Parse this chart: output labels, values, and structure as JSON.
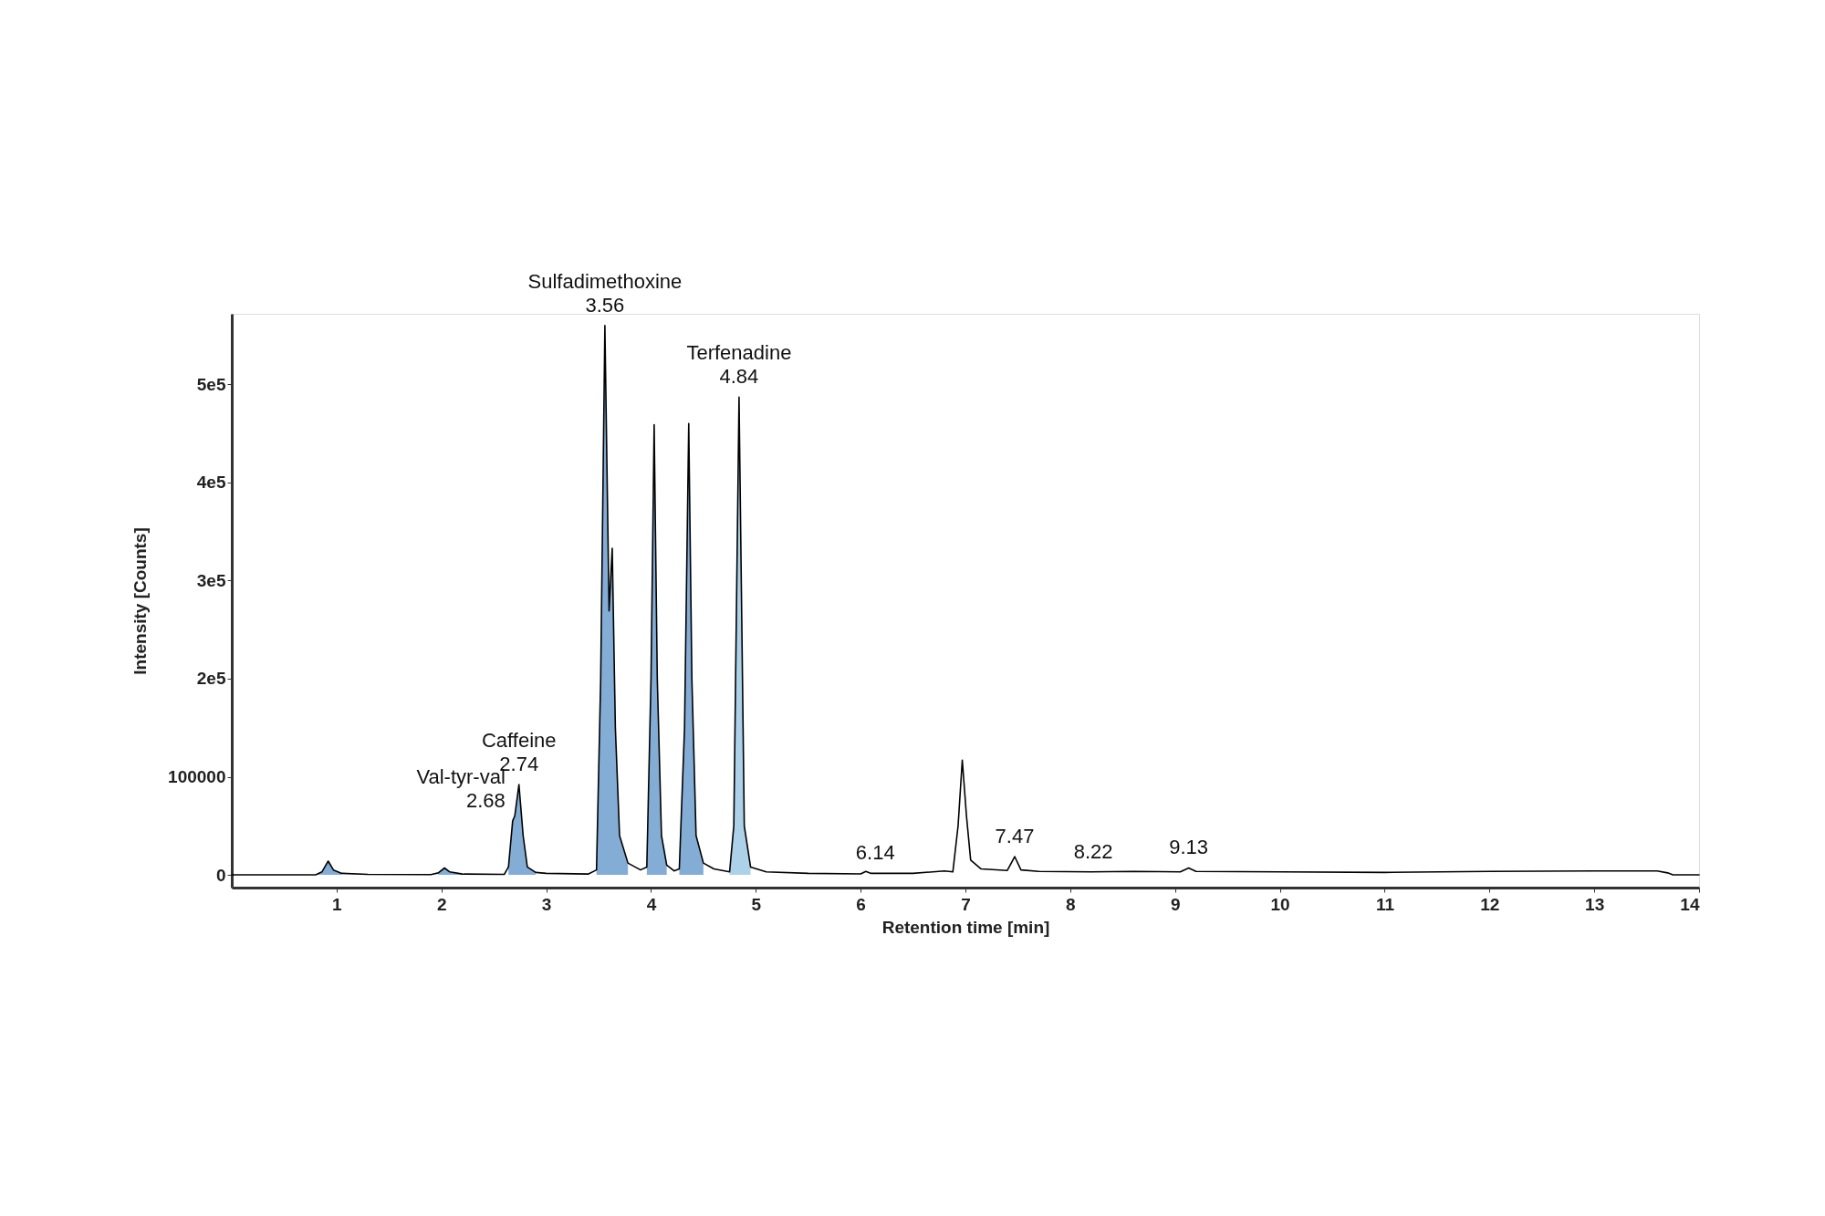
{
  "chart_data": {
    "type": "line",
    "xlabel": "Retention time [min]",
    "ylabel": "Intensity [Counts]",
    "xlim": [
      0,
      14
    ],
    "xticks": [
      1,
      2,
      3,
      4,
      5,
      6,
      7,
      8,
      9,
      10,
      11,
      12,
      13,
      14
    ],
    "ylim": [
      -13000,
      572000
    ],
    "yticks": [
      0,
      100000,
      {
        "value": 200000,
        "label": "2e5"
      },
      {
        "value": 300000,
        "label": "3e5"
      },
      {
        "value": 400000,
        "label": "4e5"
      },
      {
        "value": 500000,
        "label": "5e5"
      }
    ],
    "grid": false,
    "series": [
      {
        "type": "area",
        "color": "#6f9fcf",
        "x": [
          0.8,
          0.86,
          0.92,
          0.97,
          1.05
        ],
        "values": [
          0,
          3000,
          14000,
          5000,
          1500
        ]
      },
      {
        "type": "area",
        "color": "#6f9fcf",
        "x": [
          1.97,
          2.03,
          2.08,
          2.2
        ],
        "values": [
          2000,
          7000,
          3000,
          800
        ]
      },
      {
        "type": "area",
        "color": "#6f9fcf",
        "x": [
          2.64,
          2.68,
          2.7,
          2.74,
          2.78,
          2.82,
          2.9
        ],
        "values": [
          8000,
          55000,
          60000,
          92000,
          40000,
          8000,
          2500
        ]
      },
      {
        "type": "area",
        "color": "#6f9fcf",
        "x": [
          3.48,
          3.52,
          3.56,
          3.6,
          3.63,
          3.66,
          3.7,
          3.78
        ],
        "values": [
          5000,
          200000,
          560000,
          269000,
          333000,
          150000,
          40000,
          12000
        ]
      },
      {
        "type": "area",
        "color": "#6f9fcf",
        "x": [
          3.96,
          4.0,
          4.03,
          4.06,
          4.1,
          4.15
        ],
        "values": [
          8000,
          200000,
          459000,
          200000,
          40000,
          10000
        ]
      },
      {
        "type": "area",
        "color": "#6f9fcf",
        "x": [
          4.27,
          4.32,
          4.36,
          4.39,
          4.43,
          4.5
        ],
        "values": [
          6000,
          150000,
          460000,
          200000,
          40000,
          12000
        ]
      },
      {
        "type": "area",
        "color": "#9ec9e4",
        "x": [
          4.75,
          4.79,
          4.84,
          4.89,
          4.95
        ],
        "values": [
          3000,
          50000,
          487000,
          50000,
          8000
        ]
      },
      {
        "type": "line",
        "color": "#000000",
        "x": [
          0,
          0.8,
          0.86,
          0.92,
          0.97,
          1.05,
          1.3,
          1.9,
          1.97,
          2.03,
          2.08,
          2.2,
          2.6,
          2.64,
          2.68,
          2.7,
          2.74,
          2.78,
          2.82,
          2.9,
          3.0,
          3.4,
          3.48,
          3.52,
          3.56,
          3.6,
          3.63,
          3.66,
          3.7,
          3.78,
          3.9,
          3.96,
          4.0,
          4.03,
          4.06,
          4.1,
          4.15,
          4.22,
          4.27,
          4.32,
          4.36,
          4.39,
          4.43,
          4.5,
          4.6,
          4.75,
          4.79,
          4.84,
          4.89,
          4.95,
          5.1,
          5.5,
          6.0,
          6.05,
          6.1,
          6.5,
          6.8,
          6.88,
          6.93,
          6.97,
          7.01,
          7.05,
          7.15,
          7.4,
          7.47,
          7.53,
          7.7,
          8.2,
          8.6,
          9.05,
          9.13,
          9.2,
          10,
          11,
          12,
          13,
          13.6,
          13.7,
          13.75,
          14
        ],
        "values": [
          0,
          0,
          3000,
          14000,
          5000,
          1500,
          500,
          300,
          2000,
          7000,
          3000,
          800,
          500,
          8000,
          55000,
          60000,
          92000,
          40000,
          8000,
          2500,
          1500,
          800,
          5000,
          200000,
          560000,
          269000,
          333000,
          150000,
          40000,
          12000,
          5000,
          8000,
          200000,
          459000,
          200000,
          40000,
          10000,
          4000,
          6000,
          150000,
          460000,
          200000,
          40000,
          12000,
          6000,
          3000,
          50000,
          487000,
          50000,
          8000,
          3000,
          1500,
          1000,
          3500,
          1500,
          1500,
          4000,
          3000,
          50000,
          117000,
          60000,
          15000,
          6000,
          4500,
          18600,
          5000,
          3500,
          3000,
          3500,
          3000,
          7000,
          3500,
          3000,
          2500,
          3500,
          4000,
          4000,
          2000,
          0,
          0
        ]
      }
    ],
    "annotations": [
      {
        "text": "Val-tyr-val\n2.68",
        "x": 2.68,
        "y": 55000
      },
      {
        "text": "Caffeine\n2.74",
        "x": 2.74,
        "y": 92000
      },
      {
        "text": "Sulfadimethoxine\n3.56",
        "x": 3.56,
        "y": 560000
      },
      {
        "text": "Terfenadine\n4.84",
        "x": 4.84,
        "y": 487000
      },
      {
        "text": "6.14",
        "x": 6.14,
        "y": 1500
      },
      {
        "text": "7.47",
        "x": 7.47,
        "y": 18600
      },
      {
        "text": "8.22",
        "x": 8.22,
        "y": 3000
      },
      {
        "text": "9.13",
        "x": 9.13,
        "y": 7000
      }
    ]
  }
}
